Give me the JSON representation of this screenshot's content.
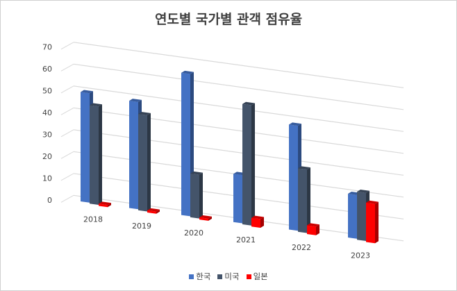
{
  "chart_data": {
    "type": "bar",
    "style": "3d-clustered-column",
    "title": "연도별 국가별 관객 점유율",
    "categories": [
      "2018",
      "2019",
      "2020",
      "2021",
      "2022",
      "2023"
    ],
    "series": [
      {
        "name": "한국",
        "color": "#4472c4",
        "values": [
          50,
          49,
          65,
          22,
          48,
          20
        ]
      },
      {
        "name": "미국",
        "color": "#44546a",
        "values": [
          45,
          44,
          20,
          55,
          29,
          22
        ]
      },
      {
        "name": "일본",
        "color": "#ff0000",
        "values": [
          1,
          1,
          1,
          4,
          4,
          18
        ]
      }
    ],
    "ylim": [
      0,
      70
    ],
    "yticks": [
      "0",
      "10",
      "20",
      "30",
      "40",
      "50",
      "60",
      "70"
    ],
    "grid": true,
    "legend": "bottom"
  }
}
